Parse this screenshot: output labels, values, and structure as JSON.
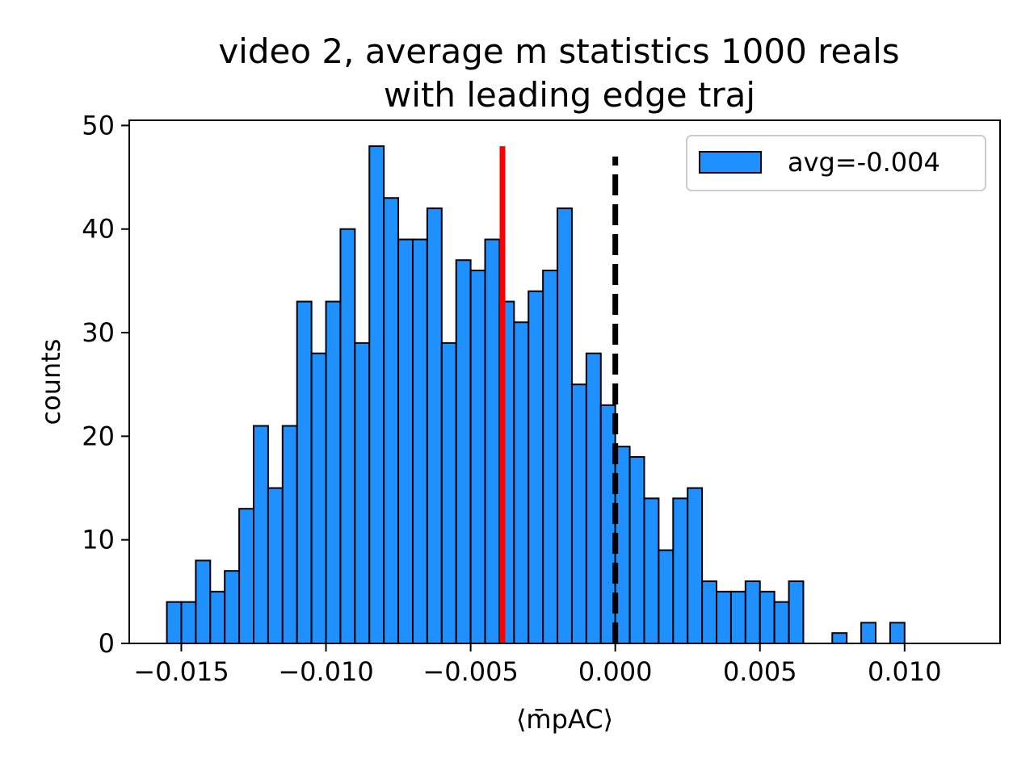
{
  "chart_data": {
    "type": "bar",
    "title": [
      "video 2, average m statistics 1000 reals",
      "with leading edge traj"
    ],
    "xlabel": "⟨m̄pAC⟩",
    "ylabel": "counts",
    "xlim": [
      -0.0168,
      0.0133
    ],
    "ylim": [
      0,
      50.5
    ],
    "xticks": [
      -0.015,
      -0.01,
      -0.005,
      0.0,
      0.005,
      0.01
    ],
    "xtick_labels": [
      "−0.015",
      "−0.010",
      "−0.005",
      "0.000",
      "0.005",
      "0.010"
    ],
    "yticks": [
      0,
      10,
      20,
      30,
      40,
      50
    ],
    "ytick_labels": [
      "0",
      "10",
      "20",
      "30",
      "40",
      "50"
    ],
    "bins": {
      "start": -0.0155,
      "width": 0.0005,
      "counts": [
        4,
        4,
        8,
        5,
        7,
        13,
        21,
        15,
        21,
        33,
        28,
        33,
        40,
        29,
        48,
        43,
        39,
        39,
        42,
        29,
        37,
        36,
        39,
        33,
        31,
        34,
        36,
        42,
        25,
        28,
        23,
        19,
        18,
        14,
        9,
        14,
        15,
        6,
        5,
        5,
        6,
        5,
        4,
        6,
        0,
        0,
        1,
        0,
        2,
        0,
        2
      ]
    },
    "bar_color": "#1e90ff",
    "bar_edge": "#000000",
    "legend": {
      "label": "avg=-0.004",
      "position": "top-right"
    },
    "lines": [
      {
        "x": -0.0039,
        "y_max": 48,
        "color": "#ff0000",
        "style": "solid"
      },
      {
        "x": 0.0,
        "y_max": 47,
        "color": "#000000",
        "style": "dashed"
      }
    ],
    "grid": false
  }
}
